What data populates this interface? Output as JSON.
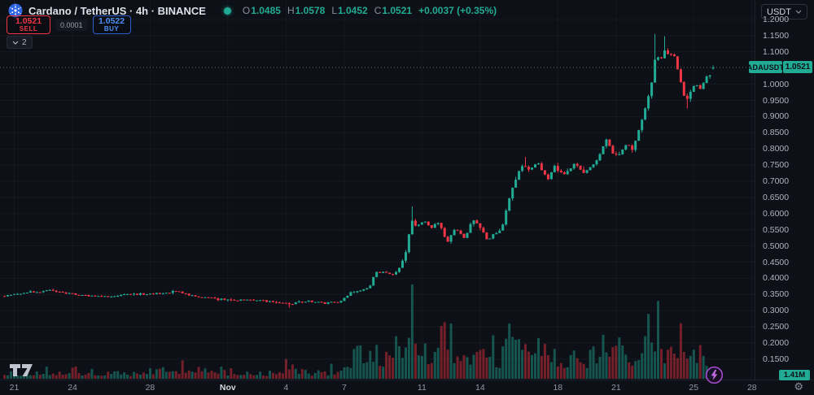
{
  "header": {
    "title": "Cardano / TetherUS · 4h · BINANCE",
    "ohlc": {
      "o_label": "O",
      "o": "1.0485",
      "h_label": "H",
      "h": "1.0578",
      "l_label": "L",
      "l": "1.0452",
      "c_label": "C",
      "c": "1.0521",
      "change": "+0.0037 (+0.35%)"
    }
  },
  "trade_panel": {
    "sell_price": "1.0521",
    "sell_label": "SELL",
    "spread": "0.0001",
    "buy_price": "1.0522",
    "buy_label": "BUY"
  },
  "indicators_chip": {
    "count": "2"
  },
  "price_scale": {
    "currency_label": "USDT",
    "symbol_tag": "ADAUSDT",
    "last_price_tag": "1.0521",
    "volume_tag": "1.41M"
  },
  "colors": {
    "bg": "#0d1017",
    "up": "#22ab94",
    "down": "#f23645",
    "vol_up": "rgba(34,171,148,0.45)",
    "vol_down": "rgba(242,54,69,0.45)",
    "buy_blue": "#4a90f4",
    "grid": "rgba(255,255,255,0.04)",
    "price_line": "#4f6a66",
    "axis_text": "#b0b3bc"
  },
  "chart_data": {
    "type": "candlestick",
    "symbol": "ADAUSDT",
    "exchange": "BINANCE",
    "interval": "4h",
    "price_axis": {
      "ticks": [
        [
          "1.2000",
          1.2
        ],
        [
          "1.1500",
          1.15
        ],
        [
          "1.1000",
          1.1
        ],
        [
          "1.0000",
          1.0
        ],
        [
          "0.9500",
          0.95
        ],
        [
          "0.9000",
          0.9
        ],
        [
          "0.8500",
          0.85
        ],
        [
          "0.8000",
          0.8
        ],
        [
          "0.7500",
          0.75
        ],
        [
          "0.7000",
          0.7
        ],
        [
          "0.6500",
          0.65
        ],
        [
          "0.6000",
          0.6
        ],
        [
          "0.5500",
          0.55
        ],
        [
          "0.5000",
          0.5
        ],
        [
          "0.4500",
          0.45
        ],
        [
          "0.4000",
          0.4
        ],
        [
          "0.3500",
          0.35
        ],
        [
          "0.3000",
          0.3
        ],
        [
          "0.2500",
          0.25
        ],
        [
          "0.2000",
          0.2
        ],
        [
          "0.1500",
          0.15
        ]
      ],
      "visible_range": [
        0.14,
        1.235
      ]
    },
    "time_axis": {
      "ticks": [
        [
          "21",
          0,
          0
        ],
        [
          "24",
          3,
          0
        ],
        [
          "28",
          7,
          0
        ],
        [
          "Nov",
          11,
          1
        ],
        [
          "4",
          14,
          0
        ],
        [
          "7",
          17,
          0
        ],
        [
          "11",
          21,
          0
        ],
        [
          "14",
          24,
          0
        ],
        [
          "18",
          28,
          0
        ],
        [
          "21",
          31,
          0
        ],
        [
          "25",
          35,
          0
        ],
        [
          "28",
          38,
          0
        ]
      ],
      "note_day0": "Oct 21"
    },
    "last_candle": {
      "o": 1.0485,
      "h": 1.0578,
      "l": 1.0452,
      "c": 1.0521
    },
    "last_volume_m": 1.41,
    "price_keyframes": [
      [
        -0.6,
        0.345
      ],
      [
        0.8,
        0.358
      ],
      [
        2,
        0.362
      ],
      [
        3.2,
        0.349
      ],
      [
        4.5,
        0.342
      ],
      [
        6,
        0.35
      ],
      [
        7.5,
        0.353
      ],
      [
        8.3,
        0.36
      ],
      [
        9.3,
        0.344
      ],
      [
        10.5,
        0.335
      ],
      [
        12,
        0.332
      ],
      [
        13.5,
        0.328
      ],
      [
        14.2,
        0.32
      ],
      [
        15,
        0.33
      ],
      [
        16,
        0.323
      ],
      [
        16.8,
        0.327
      ],
      [
        17.3,
        0.356
      ],
      [
        17.9,
        0.361
      ],
      [
        18.3,
        0.372
      ],
      [
        18.6,
        0.42
      ],
      [
        19.2,
        0.417
      ],
      [
        19.6,
        0.412
      ],
      [
        19.9,
        0.44
      ],
      [
        20.2,
        0.482
      ],
      [
        20.45,
        0.585
      ],
      [
        20.7,
        0.558
      ],
      [
        21.1,
        0.583
      ],
      [
        21.5,
        0.556
      ],
      [
        21.9,
        0.574
      ],
      [
        22.3,
        0.506
      ],
      [
        22.7,
        0.556
      ],
      [
        23.2,
        0.522
      ],
      [
        23.6,
        0.578
      ],
      [
        24,
        0.558
      ],
      [
        24.4,
        0.516
      ],
      [
        24.8,
        0.54
      ],
      [
        25.1,
        0.553
      ],
      [
        25.5,
        0.645
      ],
      [
        26.1,
        0.755
      ],
      [
        26.5,
        0.74
      ],
      [
        27,
        0.76
      ],
      [
        27.45,
        0.701
      ],
      [
        27.8,
        0.744
      ],
      [
        28.3,
        0.724
      ],
      [
        28.8,
        0.752
      ],
      [
        29.3,
        0.728
      ],
      [
        29.9,
        0.752
      ],
      [
        30.5,
        0.835
      ],
      [
        30.8,
        0.788
      ],
      [
        31.15,
        0.776
      ],
      [
        31.5,
        0.818
      ],
      [
        31.85,
        0.8
      ],
      [
        32.2,
        0.862
      ],
      [
        32.6,
        0.94
      ],
      [
        32.9,
        1.02
      ],
      [
        33.05,
        1.098
      ],
      [
        33.25,
        1.062
      ],
      [
        33.5,
        1.105
      ],
      [
        33.75,
        1.082
      ],
      [
        33.95,
        1.09
      ],
      [
        34.15,
        1.042
      ],
      [
        34.4,
        0.985
      ],
      [
        34.65,
        0.947
      ],
      [
        34.9,
        0.996
      ],
      [
        35.15,
        1.006
      ],
      [
        35.4,
        0.988
      ],
      [
        35.65,
        1.028
      ],
      [
        35.9,
        1.018
      ],
      [
        36.0,
        1.0521
      ]
    ],
    "wick_events": [
      {
        "d": 14.2,
        "low": 0.309
      },
      {
        "d": 20.5,
        "high": 0.622
      },
      {
        "d": 26.3,
        "high": 0.775
      },
      {
        "d": 33.05,
        "high": 1.155
      },
      {
        "d": 33.5,
        "high": 1.148
      },
      {
        "d": 34.65,
        "low": 0.925
      }
    ],
    "volume_keyframes_m": [
      [
        -0.5,
        1.0
      ],
      [
        2,
        1.6
      ],
      [
        4,
        1.3
      ],
      [
        6,
        1.1
      ],
      [
        8.3,
        2.0
      ],
      [
        9.3,
        2.6
      ],
      [
        11,
        1.4
      ],
      [
        13,
        1.1
      ],
      [
        14.2,
        2.4
      ],
      [
        15.2,
        1.4
      ],
      [
        16.2,
        1.2
      ],
      [
        16.9,
        2.5
      ],
      [
        17.4,
        4.5
      ],
      [
        18.1,
        3.2
      ],
      [
        18.6,
        6.0
      ],
      [
        19.3,
        3.6
      ],
      [
        19.9,
        5.0
      ],
      [
        20.45,
        13.0
      ],
      [
        20.9,
        7.5
      ],
      [
        21.5,
        5.0
      ],
      [
        22.3,
        11.0
      ],
      [
        22.9,
        4.2
      ],
      [
        23.6,
        5.2
      ],
      [
        24.4,
        6.8
      ],
      [
        25.0,
        4.2
      ],
      [
        25.5,
        14.8
      ],
      [
        26.0,
        9.0
      ],
      [
        26.4,
        13.0
      ],
      [
        27.0,
        6.0
      ],
      [
        27.5,
        8.0
      ],
      [
        28.2,
        4.0
      ],
      [
        28.9,
        6.2
      ],
      [
        29.5,
        3.6
      ],
      [
        29.9,
        5.2
      ],
      [
        30.5,
        8.8
      ],
      [
        31.0,
        4.4
      ],
      [
        31.5,
        4.0
      ],
      [
        31.9,
        5.4
      ],
      [
        32.4,
        7.0
      ],
      [
        32.9,
        9.2
      ],
      [
        33.3,
        6.4
      ],
      [
        33.8,
        6.8
      ],
      [
        34.2,
        7.4
      ],
      [
        34.5,
        8.2
      ],
      [
        34.8,
        9.0
      ],
      [
        35.2,
        4.6
      ],
      [
        35.6,
        3.2
      ],
      [
        35.9,
        2.2
      ],
      [
        36.0,
        1.41
      ]
    ]
  }
}
